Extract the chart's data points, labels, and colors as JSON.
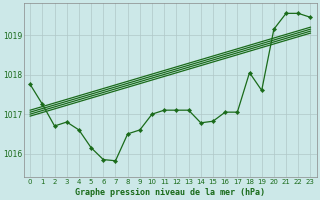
{
  "title": "Graphe pression niveau de la mer (hPa)",
  "bg_color": "#cce8e8",
  "grid_color": "#b0c8c8",
  "line_color": "#1a6b1a",
  "xlim": [
    -0.5,
    23.5
  ],
  "ylim": [
    1015.4,
    1019.8
  ],
  "yticks": [
    1016,
    1017,
    1018,
    1019
  ],
  "xticks": [
    0,
    1,
    2,
    3,
    4,
    5,
    6,
    7,
    8,
    9,
    10,
    11,
    12,
    13,
    14,
    15,
    16,
    17,
    18,
    19,
    20,
    21,
    22,
    23
  ],
  "series_main": [
    1017.75,
    1017.25,
    1016.7,
    1016.8,
    1016.6,
    1016.15,
    1015.85,
    1015.82,
    1016.5,
    1016.6,
    1017.0,
    1017.1,
    1017.1,
    1017.1,
    1016.78,
    1016.82,
    1017.05,
    1017.05,
    1018.05,
    1017.6,
    1019.15,
    1019.55,
    1019.55,
    1019.45
  ],
  "trend1_x": [
    0,
    23
  ],
  "trend1_y": [
    1017.05,
    1019.15
  ],
  "trend2_x": [
    0,
    23
  ],
  "trend2_y": [
    1016.95,
    1019.05
  ],
  "trend3_x": [
    0,
    23
  ],
  "trend3_y": [
    1017.0,
    1019.1
  ],
  "trend4_x": [
    0,
    23
  ],
  "trend4_y": [
    1017.1,
    1019.2
  ]
}
